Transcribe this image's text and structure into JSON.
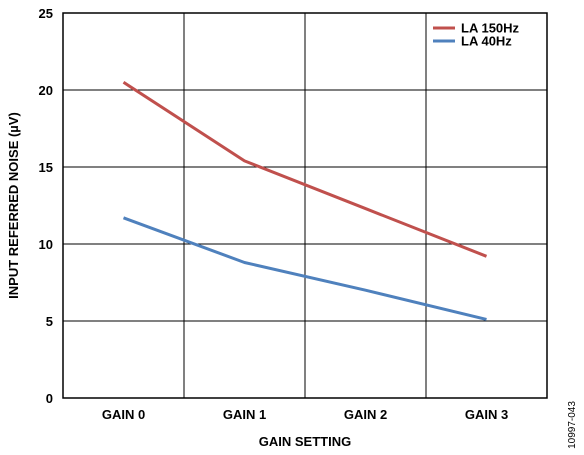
{
  "chart_data": {
    "type": "line",
    "categories": [
      "GAIN 0",
      "GAIN 1",
      "GAIN 2",
      "GAIN 3"
    ],
    "series": [
      {
        "name": "LA 150Hz",
        "color": "#c0504d",
        "values": [
          20.5,
          15.4,
          12.3,
          9.2
        ]
      },
      {
        "name": "LA 40Hz",
        "color": "#4f81bd",
        "values": [
          11.7,
          8.8,
          7.0,
          5.1
        ]
      }
    ],
    "xlabel": "GAIN SETTING",
    "ylabel": "INPUT REFERRED NOISE (µV)",
    "ylim": [
      0,
      25
    ],
    "yticks": [
      0,
      5,
      10,
      15,
      20,
      25
    ],
    "grid": true,
    "legend_position": "top-right",
    "figure_id": "10997-043"
  }
}
